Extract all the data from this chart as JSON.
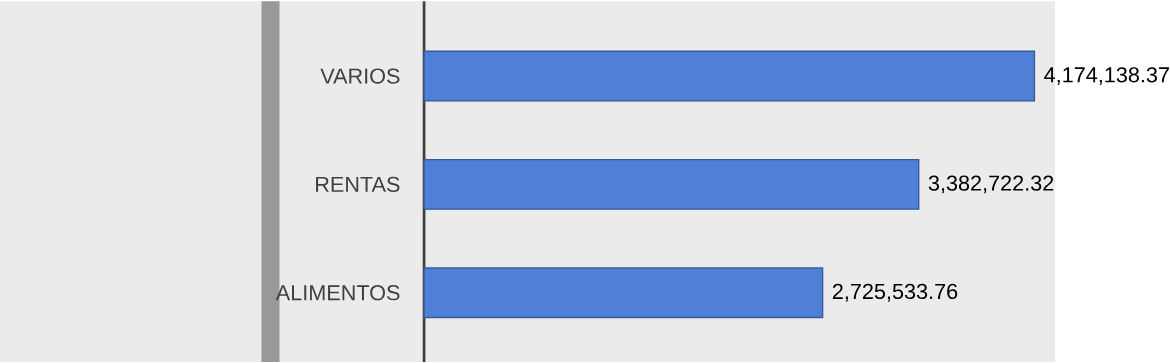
{
  "chart_data": {
    "type": "bar",
    "orientation": "horizontal",
    "categories": [
      "VARIOS",
      "RENTAS",
      "ALIMENTOS"
    ],
    "values": [
      4174138.37,
      3382722.32,
      2725533.76
    ],
    "value_labels": [
      "4,174,138.37",
      "3,382,722.32",
      "2,725,533.76"
    ],
    "color": "#4f7fd6"
  }
}
